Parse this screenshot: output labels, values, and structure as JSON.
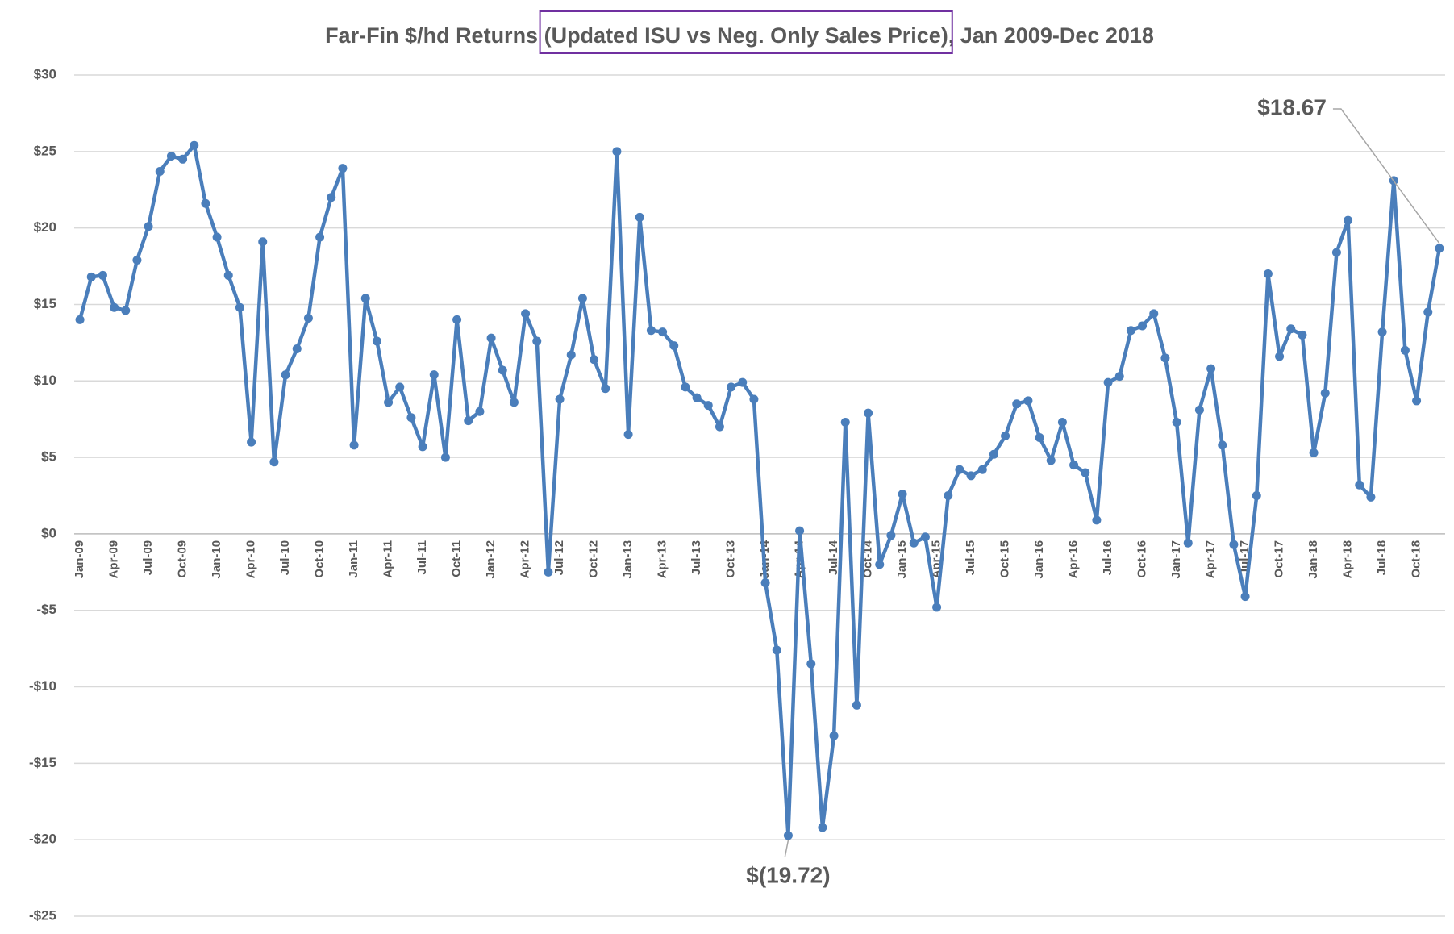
{
  "chart_data": {
    "type": "line",
    "title": "Far-Fin $/hd Returns (Updated ISU vs Neg. Only Sales Price), Jan 2009-Dec 2018",
    "categories": [
      "Jan-09",
      null,
      null,
      "Apr-09",
      null,
      null,
      "Jul-09",
      null,
      null,
      "Oct-09",
      null,
      null,
      "Jan-10",
      null,
      null,
      "Apr-10",
      null,
      null,
      "Jul-10",
      null,
      null,
      "Oct-10",
      null,
      null,
      "Jan-11",
      null,
      null,
      "Apr-11",
      null,
      null,
      "Jul-11",
      null,
      null,
      "Oct-11",
      null,
      null,
      "Jan-12",
      null,
      null,
      "Apr-12",
      null,
      null,
      "Jul-12",
      null,
      null,
      "Oct-12",
      null,
      null,
      "Jan-13",
      null,
      null,
      "Apr-13",
      null,
      null,
      "Jul-13",
      null,
      null,
      "Oct-13",
      null,
      null,
      "Jan-14",
      null,
      null,
      "Apr-14",
      null,
      null,
      "Jul-14",
      null,
      null,
      "Oct-14",
      null,
      null,
      "Jan-15",
      null,
      null,
      "Apr-15",
      null,
      null,
      "Jul-15",
      null,
      null,
      "Oct-15",
      null,
      null,
      "Jan-16",
      null,
      null,
      "Apr-16",
      null,
      null,
      "Jul-16",
      null,
      null,
      "Oct-16",
      null,
      null,
      "Jan-17",
      null,
      null,
      "Apr-17",
      null,
      null,
      "Jul-17",
      null,
      null,
      "Oct-17",
      null,
      null,
      "Jan-18",
      null,
      null,
      "Apr-18",
      null,
      null,
      "Jul-18",
      null,
      null,
      "Oct-18",
      null,
      null
    ],
    "series": [
      {
        "color": "#4a7ebb",
        "values": [
          14.0,
          16.8,
          16.9,
          14.8,
          14.6,
          17.9,
          20.1,
          23.7,
          24.7,
          24.5,
          25.4,
          21.6,
          19.4,
          16.9,
          14.8,
          6.0,
          19.1,
          4.7,
          10.4,
          12.1,
          14.1,
          19.4,
          22.0,
          23.9,
          5.8,
          15.4,
          12.6,
          8.6,
          9.6,
          7.6,
          5.7,
          10.4,
          5.0,
          14.0,
          7.4,
          8.0,
          12.8,
          10.7,
          8.6,
          14.4,
          12.6,
          -2.5,
          8.8,
          11.7,
          15.4,
          11.4,
          9.5,
          25.0,
          6.5,
          20.7,
          13.3,
          13.2,
          12.3,
          9.6,
          8.9,
          8.4,
          7.0,
          9.6,
          9.9,
          8.8,
          -3.2,
          -7.6,
          -19.72,
          0.2,
          -8.5,
          -19.2,
          -13.2,
          7.3,
          -11.2,
          7.9,
          -2.0,
          -0.1,
          2.6,
          -0.6,
          -0.2,
          -4.8,
          2.5,
          4.2,
          3.8,
          4.2,
          5.2,
          6.4,
          8.5,
          8.7,
          6.3,
          4.8,
          7.3,
          4.5,
          4.0,
          0.9,
          9.9,
          10.3,
          13.3,
          13.6,
          14.4,
          11.5,
          7.3,
          -0.6,
          8.1,
          10.8,
          5.8,
          -0.7,
          -4.1,
          2.5,
          17.0,
          11.6,
          13.4,
          13.0,
          5.3,
          9.2,
          18.4,
          20.5,
          3.2,
          2.4,
          13.2,
          23.1,
          12.0,
          8.7,
          14.5,
          18.67
        ]
      }
    ],
    "ylim": [
      -25,
      30
    ],
    "yticks": [
      {
        "value": -25,
        "label": "-$25"
      },
      {
        "value": -20,
        "label": "-$20"
      },
      {
        "value": -15,
        "label": "-$15"
      },
      {
        "value": -10,
        "label": "-$10"
      },
      {
        "value": -5,
        "label": "-$5"
      },
      {
        "value": 0,
        "label": "$0"
      },
      {
        "value": 5,
        "label": "$5"
      },
      {
        "value": 10,
        "label": "$10"
      },
      {
        "value": 15,
        "label": "$15"
      },
      {
        "value": 20,
        "label": "$20"
      },
      {
        "value": 25,
        "label": "$25"
      },
      {
        "value": 30,
        "label": "$30"
      }
    ],
    "grid": true,
    "annotations": [
      {
        "text": "$18.67",
        "index": 119
      },
      {
        "text": "$(19.72)",
        "index": 62
      }
    ]
  }
}
